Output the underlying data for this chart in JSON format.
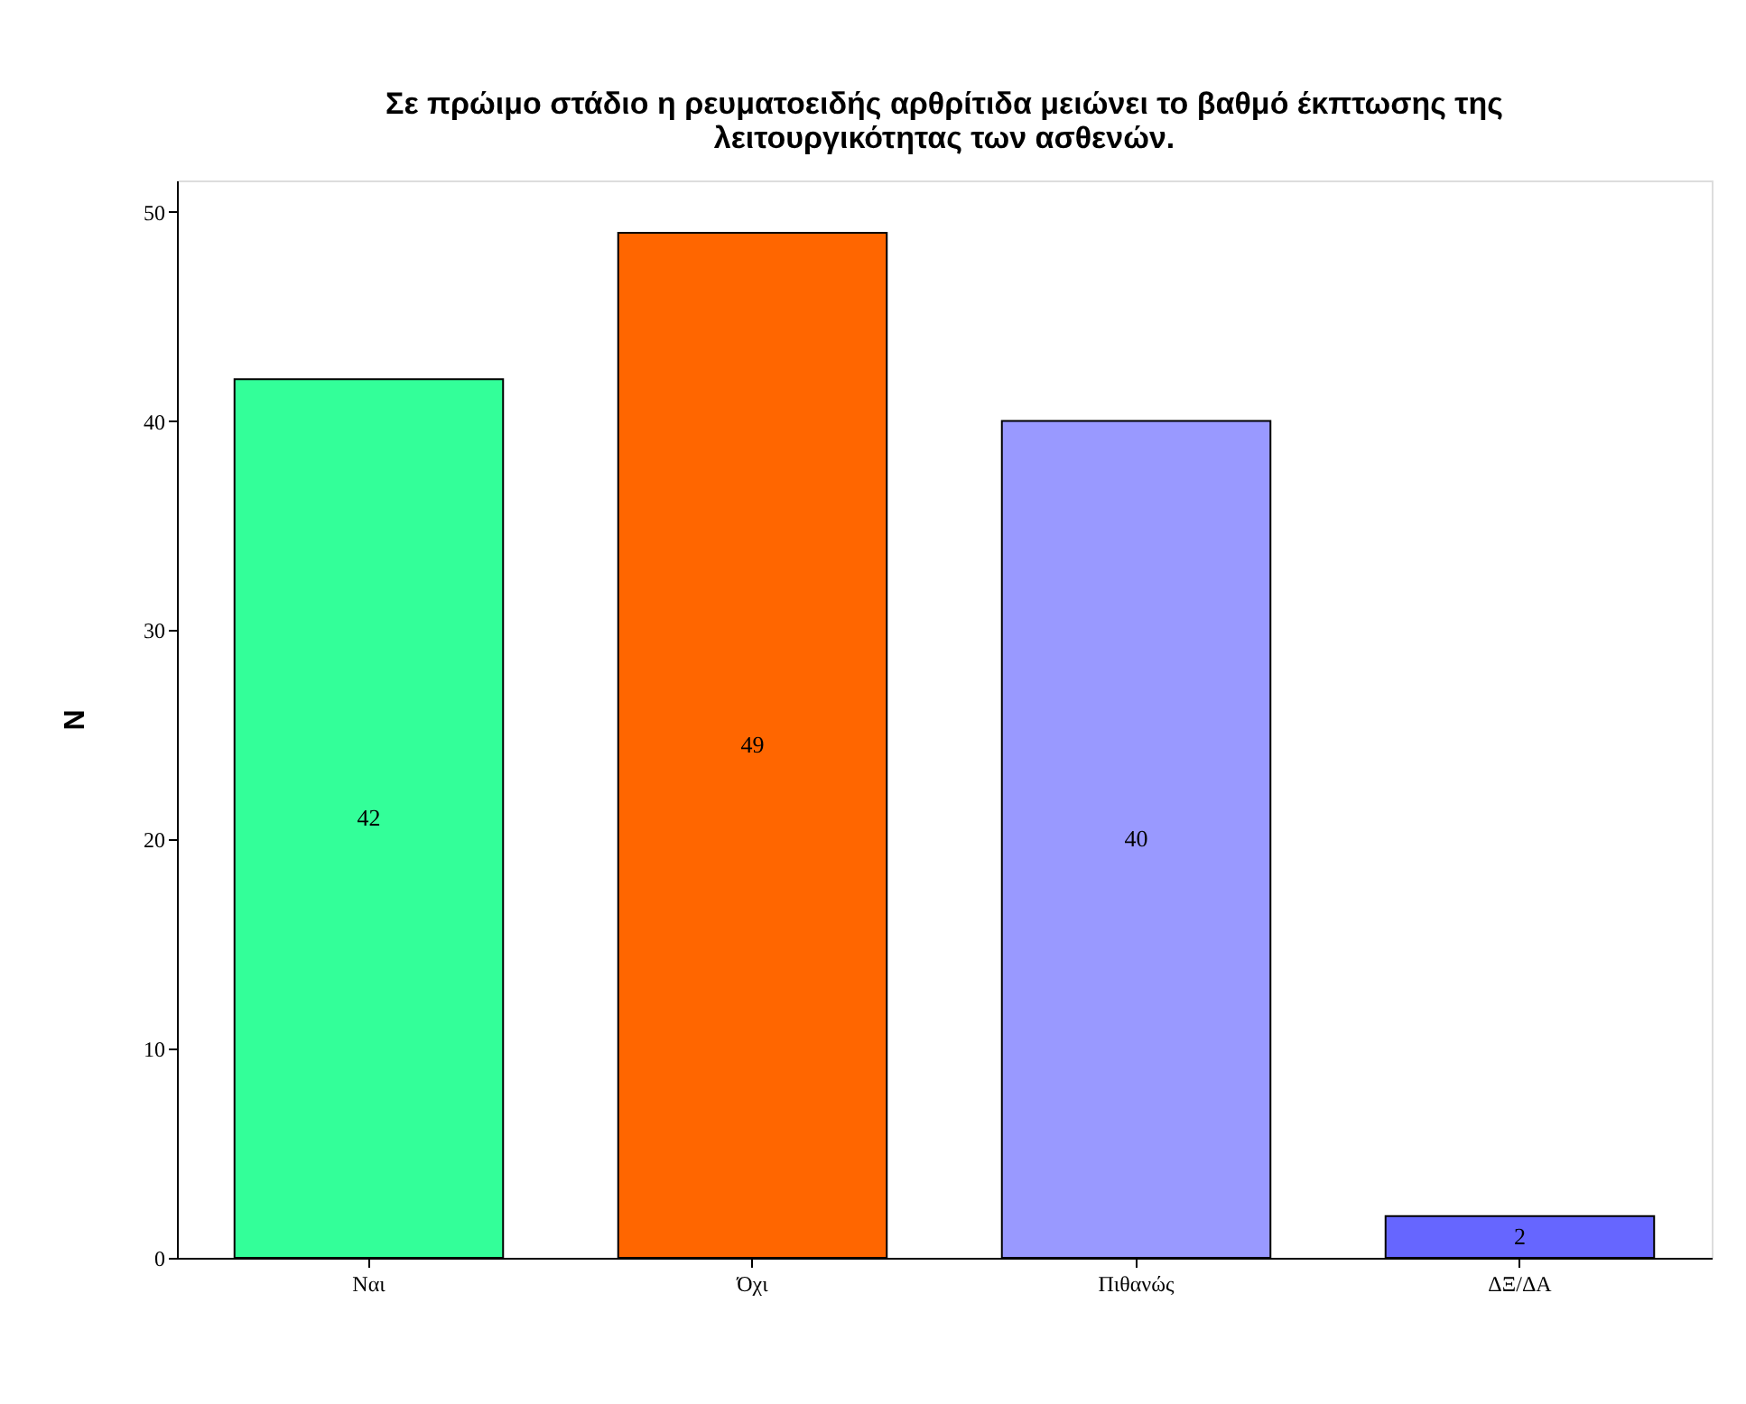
{
  "chart_data": {
    "type": "bar",
    "title": "Σε πρώιμο στάδιο η ρευματοειδής αρθρίτιδα μειώνει το βαθμό έκπτωσης της λειτουργικότητας των ασθενών.",
    "ylabel": "N",
    "categories": [
      "Ναι",
      "Όχι",
      "Πιθανώς",
      "ΔΞ/ΔΑ"
    ],
    "values": [
      42,
      49,
      40,
      2
    ],
    "colors": [
      "#33ff99",
      "#ff6600",
      "#9999ff",
      "#6666ff"
    ],
    "ylim": [
      0,
      51.5
    ],
    "yticks": [
      0,
      10,
      20,
      30,
      40,
      50
    ],
    "data_labels": true,
    "grid": false,
    "legend": false
  }
}
